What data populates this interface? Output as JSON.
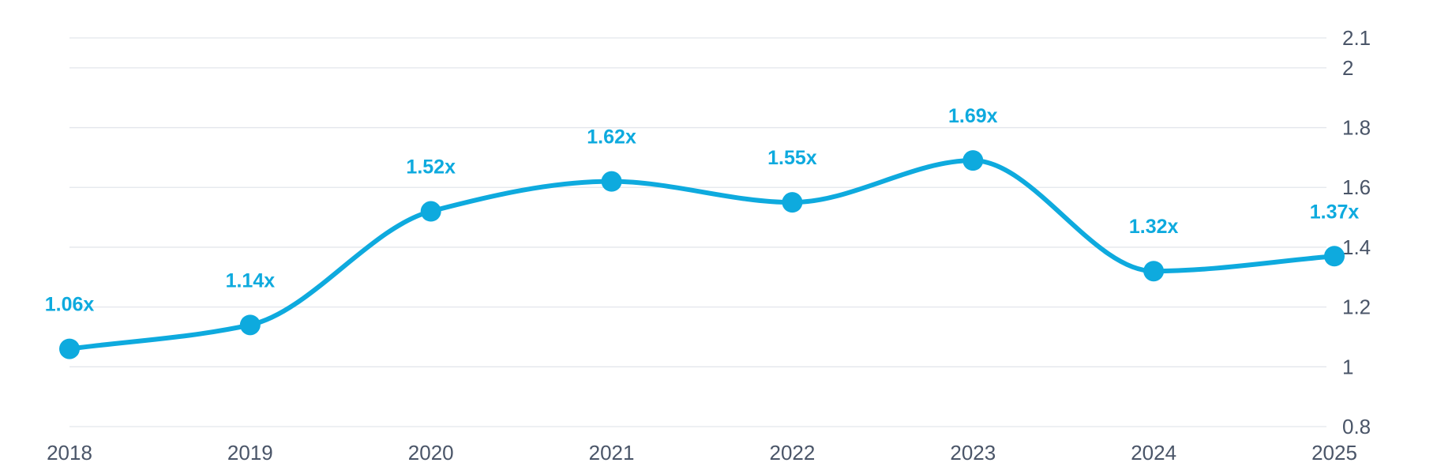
{
  "chart_data": {
    "type": "line",
    "title": "",
    "xlabel": "",
    "ylabel": "",
    "categories": [
      "2018",
      "2019",
      "2020",
      "2021",
      "2022",
      "2023",
      "2024",
      "2025"
    ],
    "series": [
      {
        "values": [
          1.06,
          1.14,
          1.52,
          1.62,
          1.55,
          1.69,
          1.32,
          1.37
        ],
        "labels": [
          "1.06x",
          "1.14x",
          "1.52x",
          "1.62x",
          "1.55x",
          "1.69x",
          "1.32x",
          "1.37x"
        ]
      }
    ],
    "ylim": [
      0.8,
      2.1
    ],
    "y_ticks": [
      0.8,
      1,
      1.2,
      1.4,
      1.6,
      1.8,
      2,
      2.1
    ],
    "y_tick_labels": [
      "0.8",
      "1",
      "1.2",
      "1.4",
      "1.6",
      "1.8",
      "2",
      "2.1"
    ],
    "y_axis_side": "right",
    "grid": true,
    "legend": "none",
    "line_style": "smooth",
    "colors": {
      "series": "#0eaade",
      "grid": "#e3e6ec",
      "tick_text": "#4a5568"
    }
  }
}
